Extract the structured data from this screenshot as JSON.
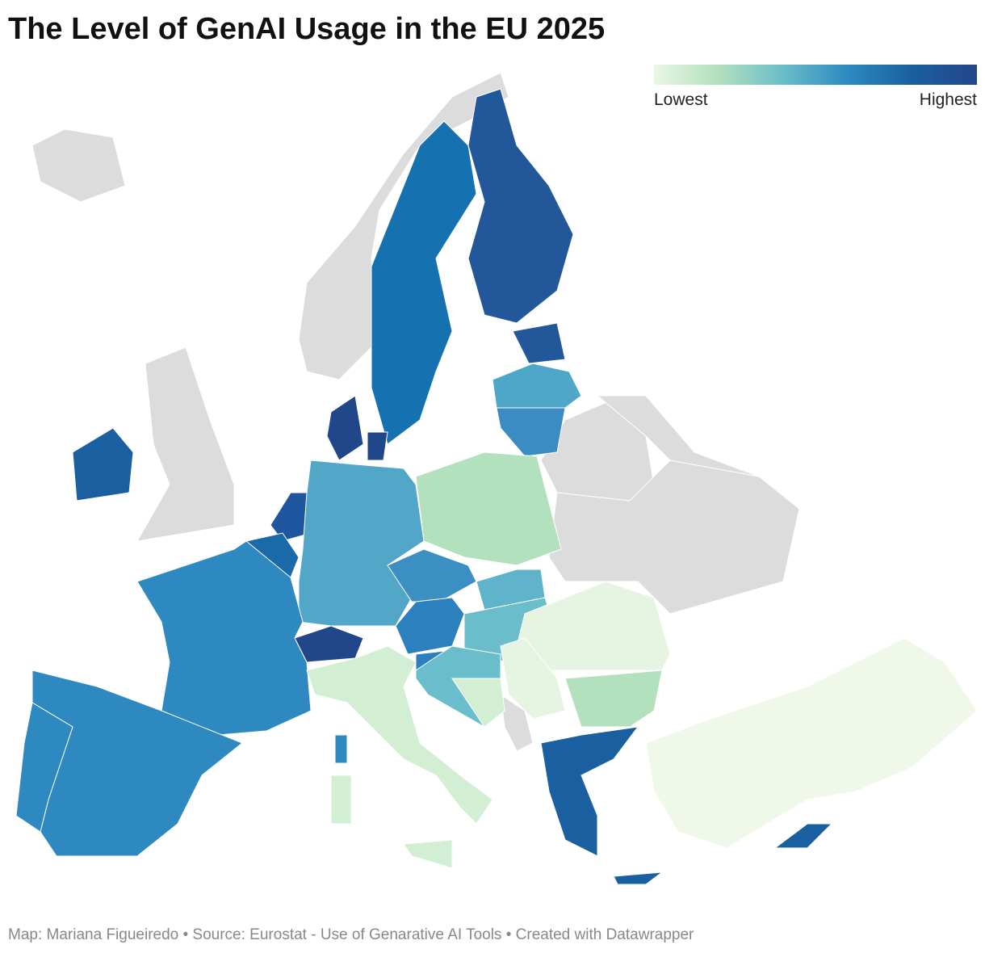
{
  "title": "The Level of GenAI Usage in the EU 2025",
  "legend": {
    "colors": [
      "#eaf7e4",
      "#b3e0bd",
      "#6abdca",
      "#2d89bf",
      "#1a5fa0",
      "#22468a"
    ],
    "low": "Lowest",
    "high": "Highest"
  },
  "footer": "Map: Mariana Figueiredo • Source: Eurostat - Use of Genarative AI Tools • Created with Datawrapper",
  "map": {
    "no_data_color": "#dcdcdc",
    "regions": [
      {
        "color": "#1571b0"
      },
      {
        "color": "#22589a"
      },
      {
        "color": "#22589a"
      },
      {
        "color": "#4ea6c8"
      },
      {
        "color": "#3a8cc2"
      },
      {
        "color": "#22468a"
      },
      {
        "color": "#22468a"
      },
      {
        "color": "#1a5fa0"
      },
      {
        "color": "#1f56a0"
      },
      {
        "color": "#1a6aaa"
      },
      {
        "color": "#52a7c9"
      },
      {
        "color": "#b3e0bd"
      },
      {
        "color": "#3b8fc3"
      },
      {
        "color": "#5fb4cc"
      },
      {
        "color": "#2b80bd"
      },
      {
        "color": "#6abdca"
      },
      {
        "color": "#22468a"
      },
      {
        "color": "#2d89bf"
      },
      {
        "color": "#2d89bf"
      },
      {
        "color": "#2d89bf"
      },
      {
        "color": "#d2eed3"
      },
      {
        "color": "#d2eed3"
      },
      {
        "color": "#d2eed3"
      },
      {
        "color": "#2d89bf"
      },
      {
        "color": "#2b80bd"
      },
      {
        "color": "#6abdca"
      },
      {
        "color": "#d2eed3"
      },
      {
        "color": "#e6f5e2"
      },
      {
        "color": "#b3e0bd"
      },
      {
        "color": "#e6f5e2"
      },
      {
        "color": "#1a5fa0"
      },
      {
        "color": "#1a5fa0"
      },
      {
        "color": "#1a5fa0"
      },
      {
        "color": "#f0f8ea"
      }
    ]
  }
}
